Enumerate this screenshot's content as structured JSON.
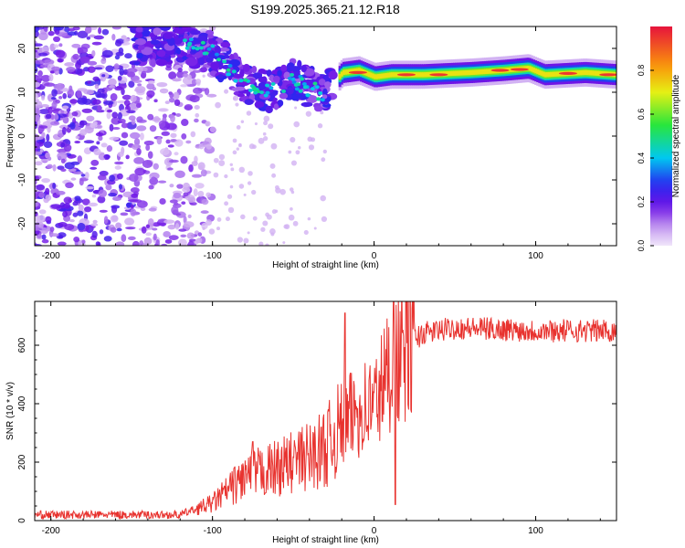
{
  "title": "S199.2025.365.21.12.R18",
  "chart_data": [
    {
      "type": "heatmap",
      "xlabel": "Height of straight line (km)",
      "ylabel": "Frequency (Hz)",
      "xlim": [
        -210,
        150
      ],
      "ylim": [
        -25,
        25
      ],
      "xticks": [
        -200,
        -100,
        0,
        100
      ],
      "yticks": [
        -20,
        -10,
        0,
        10,
        20
      ],
      "colorbar": {
        "label": "Normalized spectral amplitude",
        "range": [
          0,
          1
        ],
        "ticks": [
          "0.0",
          "0.2",
          "0.4",
          "0.6",
          "0.8"
        ]
      },
      "ridge": [
        {
          "x": -125,
          "y": 21
        },
        {
          "x": -110,
          "y": 20
        },
        {
          "x": -100,
          "y": 19
        },
        {
          "x": -90,
          "y": 16
        },
        {
          "x": -80,
          "y": 12
        },
        {
          "x": -65,
          "y": 10
        },
        {
          "x": -50,
          "y": 13
        },
        {
          "x": -40,
          "y": 11
        },
        {
          "x": -30,
          "y": 10
        },
        {
          "x": -20,
          "y": 14.5
        },
        {
          "x": -10,
          "y": 15
        },
        {
          "x": 0,
          "y": 13.5
        },
        {
          "x": 10,
          "y": 14
        },
        {
          "x": 30,
          "y": 14
        },
        {
          "x": 60,
          "y": 14.5
        },
        {
          "x": 80,
          "y": 15
        },
        {
          "x": 95,
          "y": 15.5
        },
        {
          "x": 105,
          "y": 14
        },
        {
          "x": 130,
          "y": 14.5
        },
        {
          "x": 150,
          "y": 14
        }
      ]
    },
    {
      "type": "line",
      "xlabel": "Height of straight line (km)",
      "ylabel": "SNR (10 * v/v)",
      "xlim": [
        -210,
        150
      ],
      "ylim": [
        0,
        750
      ],
      "xticks": [
        -200,
        -100,
        0,
        100
      ],
      "yticks": [
        0,
        200,
        400,
        600
      ],
      "series": [
        {
          "name": "SNR",
          "color": "#e8332f",
          "envelope": [
            {
              "x": -210,
              "y": 20
            },
            {
              "x": -120,
              "y": 20
            },
            {
              "x": -100,
              "y": 60
            },
            {
              "x": -80,
              "y": 150
            },
            {
              "x": -60,
              "y": 180
            },
            {
              "x": -40,
              "y": 220
            },
            {
              "x": -30,
              "y": 250
            },
            {
              "x": -20,
              "y": 320
            },
            {
              "x": -10,
              "y": 380
            },
            {
              "x": 0,
              "y": 400
            },
            {
              "x": 10,
              "y": 520
            },
            {
              "x": 20,
              "y": 600
            },
            {
              "x": 30,
              "y": 640
            },
            {
              "x": 50,
              "y": 660
            },
            {
              "x": 100,
              "y": 650
            },
            {
              "x": 150,
              "y": 650
            }
          ],
          "spikes": [
            {
              "x": -75,
              "y": 270
            },
            {
              "x": -18,
              "y": 710
            },
            {
              "x": 12,
              "y": 750
            },
            {
              "x": 13,
              "y": 55
            }
          ]
        }
      ]
    }
  ]
}
